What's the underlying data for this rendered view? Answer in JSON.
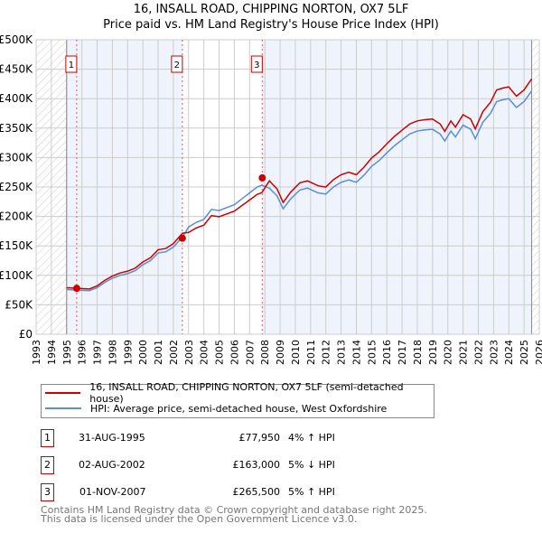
{
  "chart_data": {
    "type": "line",
    "title": "16, INSALL ROAD, CHIPPING NORTON, OX7 5LF",
    "subtitle": "Price paid vs. HM Land Registry's House Price Index (HPI)",
    "xlim": [
      1993,
      2026
    ],
    "ylim": [
      0,
      500000
    ],
    "x_ticks": [
      "1993",
      "1994",
      "1995",
      "1996",
      "1997",
      "1998",
      "1999",
      "2000",
      "2001",
      "2002",
      "2003",
      "2004",
      "2005",
      "2006",
      "2007",
      "2008",
      "2009",
      "2010",
      "2011",
      "2012",
      "2013",
      "2014",
      "2015",
      "2016",
      "2017",
      "2018",
      "2019",
      "2020",
      "2021",
      "2022",
      "2023",
      "2024",
      "2025",
      "2026"
    ],
    "y_ticks": [
      {
        "v": 0,
        "label": "£0"
      },
      {
        "v": 50000,
        "label": "£50K"
      },
      {
        "v": 100000,
        "label": "£100K"
      },
      {
        "v": 150000,
        "label": "£150K"
      },
      {
        "v": 200000,
        "label": "£200K"
      },
      {
        "v": 250000,
        "label": "£250K"
      },
      {
        "v": 300000,
        "label": "£300K"
      },
      {
        "v": 350000,
        "label": "£350K"
      },
      {
        "v": 400000,
        "label": "£400K"
      },
      {
        "v": 450000,
        "label": "£450K"
      },
      {
        "v": 500000,
        "label": "£500K"
      }
    ],
    "hpi_x": [
      1995.0,
      1995.7,
      1996.5,
      1997,
      1997.5,
      1998,
      1998.5,
      1999,
      1999.5,
      2000,
      2000.5,
      2001,
      2001.5,
      2002,
      2002.6,
      2003,
      2003.5,
      2004,
      2004.5,
      2005,
      2005.5,
      2006,
      2006.5,
      2007,
      2007.5,
      2007.8,
      2008.3,
      2008.8,
      2009.2,
      2009.7,
      2010.3,
      2010.8,
      2011.5,
      2012,
      2012.5,
      2013,
      2013.5,
      2014,
      2014.5,
      2015,
      2015.5,
      2016,
      2016.5,
      2017,
      2017.5,
      2018,
      2018.5,
      2019,
      2019.5,
      2019.8,
      2020.2,
      2020.5,
      2021,
      2021.5,
      2021.8,
      2022.3,
      2022.8,
      2023.2,
      2023.6,
      2024,
      2024.5,
      2025,
      2025.5
    ],
    "hpi_y": [
      76,
      75,
      74,
      79,
      88,
      95,
      100,
      103,
      108,
      118,
      125,
      138,
      140,
      148,
      165,
      182,
      190,
      195,
      212,
      210,
      215,
      220,
      230,
      240,
      250,
      253,
      248,
      235,
      213,
      230,
      245,
      248,
      240,
      238,
      250,
      258,
      262,
      258,
      270,
      285,
      295,
      308,
      320,
      330,
      340,
      345,
      347,
      348,
      340,
      328,
      345,
      335,
      355,
      348,
      332,
      360,
      375,
      395,
      398,
      400,
      385,
      395,
      413
    ],
    "hpi_unit": "thousand GBP",
    "price_segments": [
      {
        "from": 1995.0,
        "to": 2002.6,
        "ratio": 1.04
      },
      {
        "from": 2002.6,
        "to": 2007.83,
        "ratio": 0.95
      },
      {
        "from": 2007.83,
        "to": 2025.5,
        "ratio": 1.05
      }
    ],
    "sales": [
      {
        "label": "1",
        "x": 1995.66,
        "y": 77950
      },
      {
        "label": "2",
        "x": 2002.59,
        "y": 163000
      },
      {
        "label": "3",
        "x": 2007.83,
        "y": 265500
      }
    ],
    "data_end": 2025.5,
    "colors": {
      "price": "#cc0000",
      "hpi": "#5b8fd0",
      "shade": "#eef3fc",
      "grid": "#cccccc"
    }
  },
  "legend": {
    "price": "16, INSALL ROAD, CHIPPING NORTON, OX7 5LF (semi-detached house)",
    "hpi": "HPI: Average price, semi-detached house, West Oxfordshire"
  },
  "transactions": [
    {
      "num": "1",
      "date": "31-AUG-1995",
      "price": "£77,950",
      "hpi": "4% ↑ HPI"
    },
    {
      "num": "2",
      "date": "02-AUG-2002",
      "price": "£163,000",
      "hpi": "5% ↓ HPI"
    },
    {
      "num": "3",
      "date": "01-NOV-2007",
      "price": "£265,500",
      "hpi": "5% ↑ HPI"
    }
  ],
  "footer": {
    "line1": "Contains HM Land Registry data © Crown copyright and database right 2025.",
    "line2": "This data is licensed under the Open Government Licence v3.0."
  }
}
